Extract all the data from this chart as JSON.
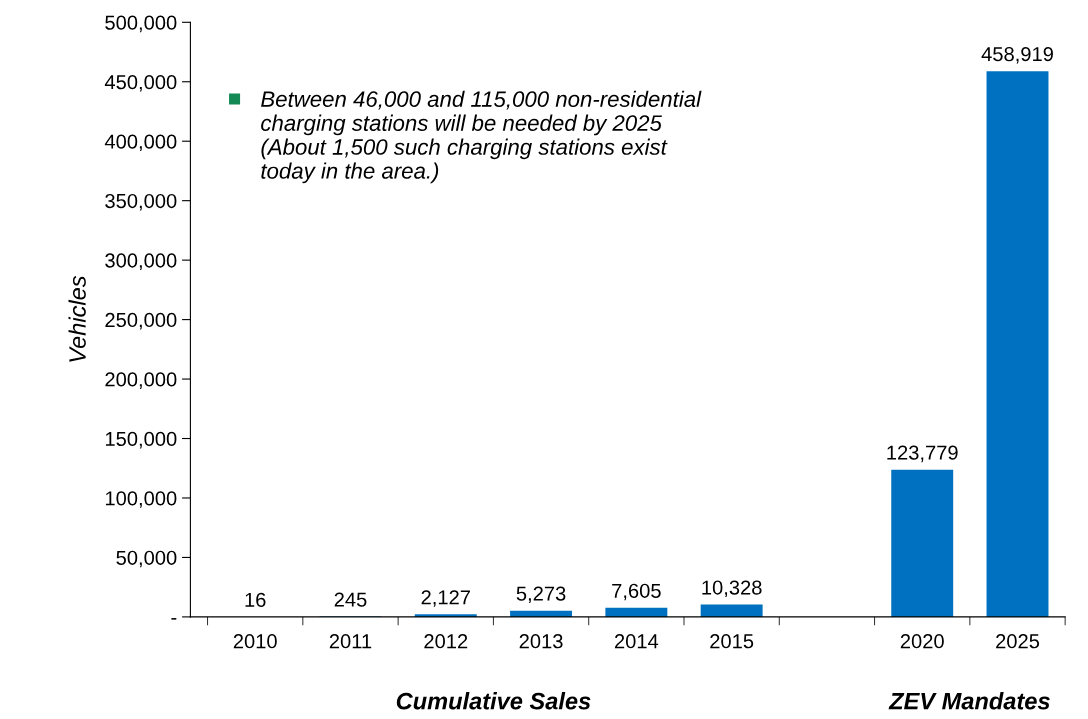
{
  "chart_data": {
    "type": "bar",
    "ylabel": "Vehicles",
    "categories": [
      "2010",
      "2011",
      "2012",
      "2013",
      "2014",
      "2015",
      null,
      "2020",
      "2025"
    ],
    "values": [
      16,
      245,
      2127,
      5273,
      7605,
      10328,
      null,
      123779,
      458919
    ],
    "value_labels": [
      "16",
      "245",
      "2,127",
      "5,273",
      "7,605",
      "10,328",
      null,
      "123,779",
      "458,919"
    ],
    "color": "#0070c0",
    "ylim": [
      0,
      500000
    ],
    "yticks": [
      {
        "value": 0,
        "label": "-"
      },
      {
        "value": 50000,
        "label": "50,000"
      },
      {
        "value": 100000,
        "label": "100,000"
      },
      {
        "value": 150000,
        "label": "150,000"
      },
      {
        "value": 200000,
        "label": "200,000"
      },
      {
        "value": 250000,
        "label": "250,000"
      },
      {
        "value": 300000,
        "label": "300,000"
      },
      {
        "value": 350000,
        "label": "350,000"
      },
      {
        "value": 400000,
        "label": "400,000"
      },
      {
        "value": 450000,
        "label": "450,000"
      },
      {
        "value": 500000,
        "label": "500,000"
      }
    ],
    "annotations": [
      "Between 46,000 and 115,000 non-residential\ncharging stations will be needed by 2025\n(About 1,500 such charging stations exist\ntoday in the area.)",
      "Cumulative Sales",
      "ZEV Mandates"
    ],
    "grid": false,
    "legend": false
  }
}
